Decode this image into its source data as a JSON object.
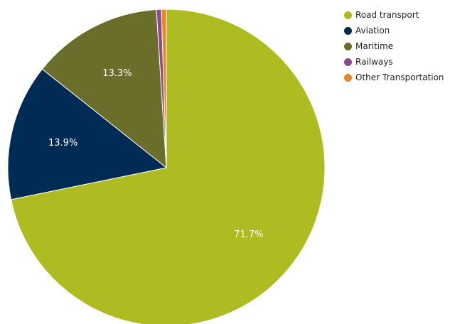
{
  "chart_data": {
    "type": "pie",
    "categories": [
      "Road transport",
      "Aviation",
      "Maritime",
      "Railways",
      "Other Transportation"
    ],
    "values": [
      71.7,
      13.9,
      13.3,
      0.5,
      0.5
    ],
    "data_labels": [
      "71.7%",
      "13.9%",
      "13.3%",
      "",
      ""
    ],
    "colors": [
      "#aebc22",
      "#002b54",
      "#6b6e2a",
      "#8c4b8a",
      "#e08a2a"
    ],
    "legend_position": "top-right",
    "start_angle": "12 o'clock",
    "direction": "clockwise"
  }
}
